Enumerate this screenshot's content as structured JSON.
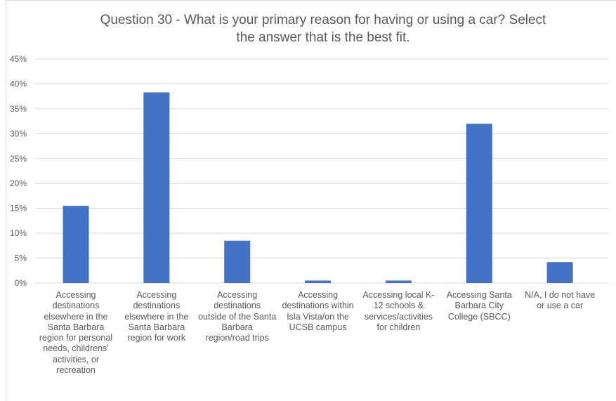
{
  "chart_data": {
    "type": "bar",
    "title_lines": [
      "Question 30 - What is your primary reason for having or using a car? Select",
      "the answer that is the best fit."
    ],
    "categories": [
      [
        "Accessing",
        "destinations",
        "elsewhere in the",
        "Santa Barbara",
        "region for personal",
        "needs, childrens'",
        "activities, or",
        "recreation"
      ],
      [
        "Accessing",
        "destinations",
        "elsewhere in the",
        "Santa Barbara",
        "region for work"
      ],
      [
        "Accessing",
        "destinations",
        "outside of the Santa",
        "Barbara",
        "region/road trips"
      ],
      [
        "Accessing",
        "destinations within",
        "Isla Vista/on the",
        "UCSB campus"
      ],
      [
        "Accessing local K-",
        "12 schools &",
        "services/activities",
        "for children"
      ],
      [
        "Accessing Santa",
        "Barbara City",
        "College (SBCC)"
      ],
      [
        "N/A, I do not have",
        "or use a car"
      ]
    ],
    "values": [
      15.5,
      38.3,
      8.5,
      0.5,
      0.5,
      32.0,
      4.2
    ],
    "y_ticks": [
      "0%",
      "5%",
      "10%",
      "15%",
      "20%",
      "25%",
      "30%",
      "35%",
      "40%",
      "45%"
    ],
    "ylim": [
      0,
      45
    ],
    "grid": true,
    "bar_color": "#4472c4",
    "grid_color": "#d9d9d9",
    "text_color": "#595959"
  }
}
